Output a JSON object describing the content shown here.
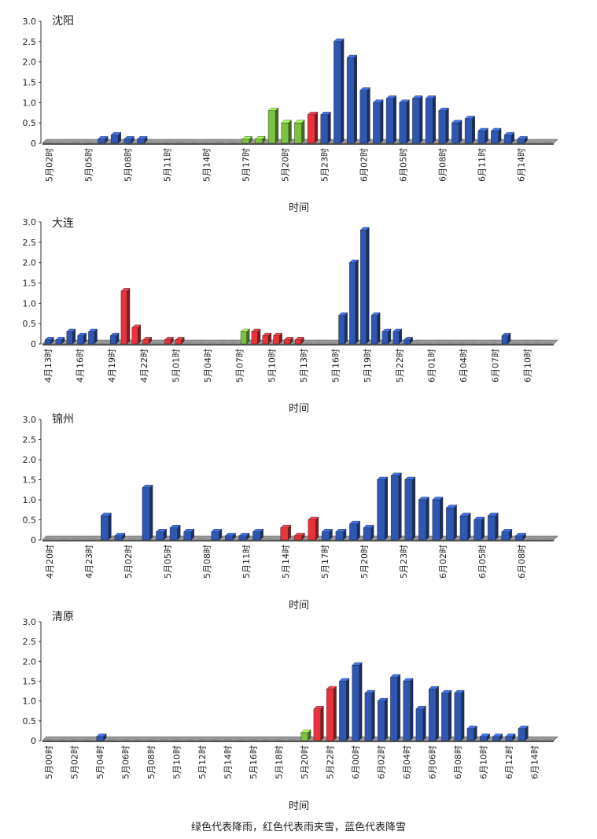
{
  "colors": {
    "rain": "#7cc142",
    "sleet": "#e8333c",
    "snow": "#2f56b0",
    "base": "#8a8a8a"
  },
  "caption": "绿色代表降雨，红色代表雨夹雪，蓝色代表降雪",
  "chart_data": [
    {
      "type": "bar",
      "title": "沈阳",
      "xlabel": "时间",
      "ylim": [
        0,
        3.0
      ],
      "yticks": [
        "0",
        "0.5",
        "1.0",
        "1.5",
        "2.0",
        "2.5",
        "3.0"
      ],
      "tick_labels": [
        "5月02时",
        "5月05时",
        "5月08时",
        "5月11时",
        "5月14时",
        "5月17时",
        "5月20时",
        "5月23时",
        "6月02时",
        "6月05时",
        "6月08时",
        "6月11时",
        "6月14时"
      ],
      "values": [
        0,
        0,
        0,
        0,
        0.1,
        0.2,
        0.1,
        0.1,
        0,
        0,
        0,
        0,
        0,
        0,
        0,
        0.1,
        0.1,
        0.8,
        0.5,
        0.5,
        0.7,
        0.7,
        2.5,
        2.1,
        1.3,
        1.0,
        1.1,
        1.0,
        1.1,
        1.1,
        0.8,
        0.5,
        0.6,
        0.3,
        0.3,
        0.2,
        0.1,
        0,
        0
      ],
      "types": [
        "n",
        "n",
        "n",
        "n",
        "s",
        "s",
        "s",
        "s",
        "n",
        "n",
        "n",
        "n",
        "n",
        "n",
        "n",
        "r",
        "r",
        "r",
        "r",
        "r",
        "x",
        "s",
        "s",
        "s",
        "s",
        "s",
        "s",
        "s",
        "s",
        "s",
        "s",
        "s",
        "s",
        "s",
        "s",
        "s",
        "s",
        "n",
        "n"
      ]
    },
    {
      "type": "bar",
      "title": "大连",
      "xlabel": "时间",
      "ylim": [
        0,
        3.0
      ],
      "yticks": [
        "0",
        "0.5",
        "1.0",
        "1.5",
        "2.0",
        "2.5",
        "3.0"
      ],
      "tick_labels": [
        "4月13时",
        "4月16时",
        "4月19时",
        "4月22时",
        "5月01时",
        "5月04时",
        "5月07时",
        "5月10时",
        "5月13时",
        "5月16时",
        "5月19时",
        "5月22时",
        "6月01时",
        "6月04时",
        "6月07时",
        "6月10时"
      ],
      "values": [
        0.1,
        0.1,
        0.3,
        0.2,
        0.3,
        0,
        0.2,
        1.3,
        0.4,
        0.1,
        0,
        0.1,
        0.1,
        0,
        0,
        0,
        0,
        0,
        0.3,
        0.3,
        0.2,
        0.2,
        0.1,
        0.1,
        0,
        0,
        0,
        0.7,
        2.0,
        2.8,
        0.7,
        0.3,
        0.3,
        0.1,
        0,
        0,
        0,
        0,
        0,
        0,
        0,
        0,
        0.2,
        0,
        0,
        0,
        0
      ],
      "types": [
        "s",
        "s",
        "s",
        "s",
        "s",
        "n",
        "s",
        "x",
        "x",
        "x",
        "n",
        "x",
        "x",
        "n",
        "n",
        "n",
        "n",
        "n",
        "r",
        "x",
        "x",
        "x",
        "x",
        "x",
        "n",
        "n",
        "n",
        "s",
        "s",
        "s",
        "s",
        "s",
        "s",
        "s",
        "n",
        "n",
        "n",
        "n",
        "n",
        "n",
        "n",
        "n",
        "s",
        "n",
        "n",
        "n",
        "n"
      ]
    },
    {
      "type": "bar",
      "title": "锦州",
      "xlabel": "时间",
      "ylim": [
        0,
        3.0
      ],
      "yticks": [
        "0",
        "0.5",
        "1.0",
        "1.5",
        "2.0",
        "2.5",
        "3.0"
      ],
      "tick_labels": [
        "4月20时",
        "4月23时",
        "5月02时",
        "5月05时",
        "5月08时",
        "5月11时",
        "5月14时",
        "5月17时",
        "5月20时",
        "5月23时",
        "6月02时",
        "6月05时",
        "6月08时"
      ],
      "values": [
        0,
        0,
        0,
        0,
        0.6,
        0.1,
        0,
        1.3,
        0.2,
        0.3,
        0.2,
        0,
        0.2,
        0.1,
        0.1,
        0.2,
        0,
        0.3,
        0.1,
        0.5,
        0.2,
        0.2,
        0.4,
        0.3,
        1.5,
        1.6,
        1.5,
        1.0,
        1.0,
        0.8,
        0.6,
        0.5,
        0.6,
        0.2,
        0.1,
        0,
        0
      ],
      "types": [
        "n",
        "n",
        "n",
        "n",
        "s",
        "s",
        "n",
        "s",
        "s",
        "s",
        "s",
        "n",
        "s",
        "s",
        "s",
        "s",
        "n",
        "x",
        "x",
        "x",
        "s",
        "s",
        "s",
        "s",
        "s",
        "s",
        "s",
        "s",
        "s",
        "s",
        "s",
        "s",
        "s",
        "s",
        "s",
        "n",
        "n"
      ]
    },
    {
      "type": "bar",
      "title": "清原",
      "xlabel": "时间",
      "ylim": [
        0,
        3.0
      ],
      "yticks": [
        "0",
        "0.5",
        "1.0",
        "1.5",
        "2.0",
        "2.5",
        "3.0"
      ],
      "tick_labels": [
        "5月00时",
        "5月02时",
        "5月04时",
        "5月06时",
        "5月08时",
        "5月10时",
        "5月12时",
        "5月14时",
        "5月16时",
        "5月18时",
        "5月20时",
        "5月22时",
        "6月00时",
        "6月02时",
        "6月04时",
        "6月06时",
        "6月08时",
        "6月10时",
        "6月12时",
        "6月14时"
      ],
      "values": [
        0,
        0,
        0,
        0,
        0.1,
        0,
        0,
        0,
        0,
        0,
        0,
        0,
        0,
        0,
        0,
        0,
        0,
        0,
        0,
        0,
        0.2,
        0.8,
        1.3,
        1.5,
        1.9,
        1.2,
        1.0,
        1.6,
        1.5,
        0.8,
        1.3,
        1.2,
        1.2,
        0.3,
        0.1,
        0.1,
        0.1,
        0.3,
        0,
        0
      ],
      "types": [
        "n",
        "n",
        "n",
        "n",
        "s",
        "n",
        "n",
        "n",
        "n",
        "n",
        "n",
        "n",
        "n",
        "n",
        "n",
        "n",
        "n",
        "n",
        "n",
        "n",
        "r",
        "x",
        "x",
        "s",
        "s",
        "s",
        "s",
        "s",
        "s",
        "s",
        "s",
        "s",
        "s",
        "s",
        "s",
        "s",
        "s",
        "s",
        "n",
        "n"
      ]
    }
  ]
}
